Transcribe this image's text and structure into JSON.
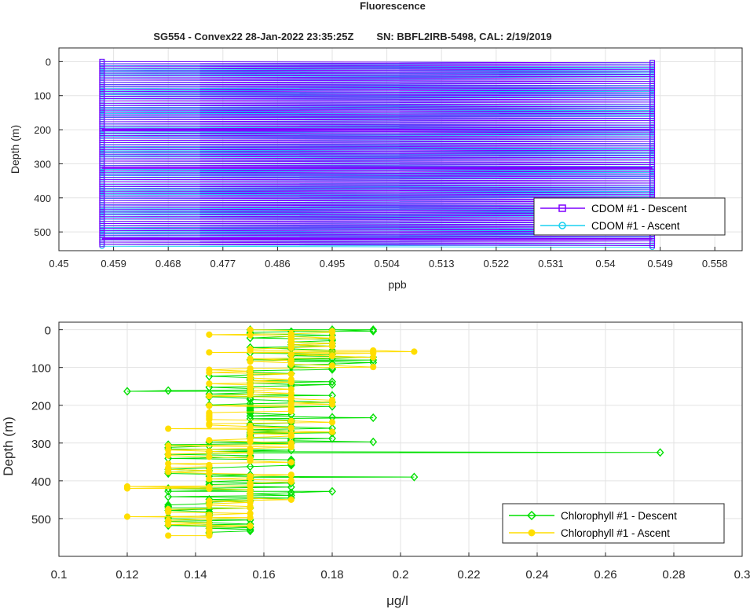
{
  "figure_title": "Fluorescence",
  "chart_data": [
    {
      "type": "line",
      "title": "SG554 - Convex22 28-Jan-2022 23:35:25Z        SN: BBFL2IRB-5498, CAL: 2/19/2019",
      "xlabel": "ppb",
      "ylabel": "Depth (m)",
      "xlim": [
        0.45,
        0.5625
      ],
      "ylim": [
        555,
        -40
      ],
      "y_reversed": true,
      "grid": true,
      "legend_position": "bottom-right",
      "x_ticks": [
        "0.45",
        "0.459",
        "0.468",
        "0.477",
        "0.486",
        "0.495",
        "0.504",
        "0.513",
        "0.522",
        "0.531",
        "0.54",
        "0.549",
        "0.558"
      ],
      "y_ticks": [
        "0",
        "100",
        "200",
        "300",
        "400",
        "500"
      ],
      "series": [
        {
          "name": "CDOM #1 - Descent",
          "color": "#7f00ff",
          "marker": "square",
          "x_values": [
            0.4571,
            0.5477
          ],
          "depth_range": [
            0,
            540
          ],
          "note": "values alternate between the two levels"
        },
        {
          "name": "CDOM #1 - Ascent",
          "color": "#1ad1f0",
          "marker": "circle",
          "x_values": [
            0.4571,
            0.5477
          ],
          "depth_range": [
            0,
            545
          ]
        }
      ]
    },
    {
      "type": "line",
      "title": "",
      "xlabel": "μg/l",
      "ylabel": "Depth (m)",
      "xlim": [
        0.1,
        0.3
      ],
      "ylim": [
        600,
        -20
      ],
      "y_reversed": true,
      "grid": true,
      "legend_position": "bottom-right",
      "x_ticks": [
        "0.1",
        "0.12",
        "0.14",
        "0.16",
        "0.18",
        "0.2",
        "0.22",
        "0.24",
        "0.26",
        "0.28",
        "0.3"
      ],
      "y_ticks": [
        "0",
        "100",
        "200",
        "300",
        "400",
        "500"
      ],
      "series": [
        {
          "name": "Chlorophyll #1 - Descent",
          "color": "#00e000",
          "marker": "diamond",
          "x_levels": [
            0.12,
            0.132,
            0.144,
            0.156,
            0.168,
            0.18,
            0.192,
            0.204,
            0.276
          ],
          "notable_points": [
            {
              "x": 0.192,
              "y": 0
            },
            {
              "x": 0.18,
              "y": 0
            },
            {
              "x": 0.168,
              "y": 5
            },
            {
              "x": 0.192,
              "y": 80
            },
            {
              "x": 0.18,
              "y": 105
            },
            {
              "x": 0.18,
              "y": 145
            },
            {
              "x": 0.12,
              "y": 163
            },
            {
              "x": 0.132,
              "y": 161
            },
            {
              "x": 0.18,
              "y": 203
            },
            {
              "x": 0.192,
              "y": 233
            },
            {
              "x": 0.18,
              "y": 273
            },
            {
              "x": 0.18,
              "y": 288
            },
            {
              "x": 0.192,
              "y": 297
            },
            {
              "x": 0.276,
              "y": 325
            },
            {
              "x": 0.204,
              "y": 390
            },
            {
              "x": 0.18,
              "y": 428
            },
            {
              "x": 0.156,
              "y": 472
            },
            {
              "x": 0.156,
              "y": 524
            }
          ],
          "depth_range": [
            0,
            540
          ]
        },
        {
          "name": "Chlorophyll #1 - Ascent",
          "color": "#ffde00",
          "marker": "circle",
          "x_levels": [
            0.12,
            0.132,
            0.144,
            0.156,
            0.168,
            0.18,
            0.192,
            0.204
          ],
          "notable_points": [
            {
              "x": 0.144,
              "y": 13
            },
            {
              "x": 0.204,
              "y": 58
            },
            {
              "x": 0.192,
              "y": 55
            },
            {
              "x": 0.144,
              "y": 60
            },
            {
              "x": 0.132,
              "y": 262
            },
            {
              "x": 0.12,
              "y": 415
            },
            {
              "x": 0.12,
              "y": 420
            },
            {
              "x": 0.12,
              "y": 495
            },
            {
              "x": 0.132,
              "y": 545
            }
          ],
          "depth_range": [
            0,
            545
          ]
        }
      ]
    }
  ]
}
